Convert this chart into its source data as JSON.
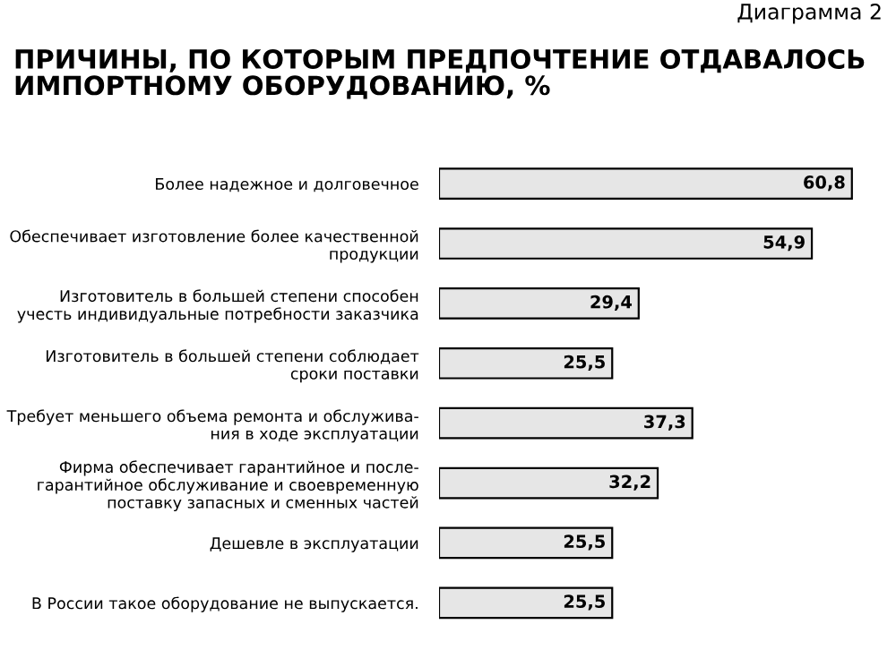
{
  "chart_data": {
    "type": "bar",
    "orientation": "horizontal",
    "title": "ПРИЧИНЫ, ПО КОТОРЫМ ПРЕДПОЧТЕНИЕ ОТДАВАЛОСЬ\nИМПОРТНОМУ ОБОРУДОВАНИЮ, %",
    "annotations": [
      "Диаграмма 2"
    ],
    "categories": [
      "Более надежное и долговечное",
      "Обеспечивает изготовление более качественной\nпродукции",
      "Изготовитель в большей степени способен\nучесть индивидуальные потребности заказчика",
      "Изготовитель в большей степени соблюдает\nсроки поставки",
      "Требует меньшего объема ремонта и обслужива-\nния в ходе эксплуатации",
      "Фирма обеспечивает гарантийное и после-\nгарантийное обслуживание и своевременную\nпоставку запасных и сменных частей",
      "Дешевле в эксплуатации",
      "В России такое оборудование не выпускается."
    ],
    "values": [
      60.8,
      54.9,
      29.4,
      25.5,
      37.3,
      32.2,
      25.5,
      25.5
    ],
    "value_labels": [
      "60,8",
      "54,9",
      "29,4",
      "25,5",
      "37,3",
      "32,2",
      "25,5",
      "25,5"
    ],
    "color": "#e6e6e6",
    "grid": false,
    "legend": false
  }
}
